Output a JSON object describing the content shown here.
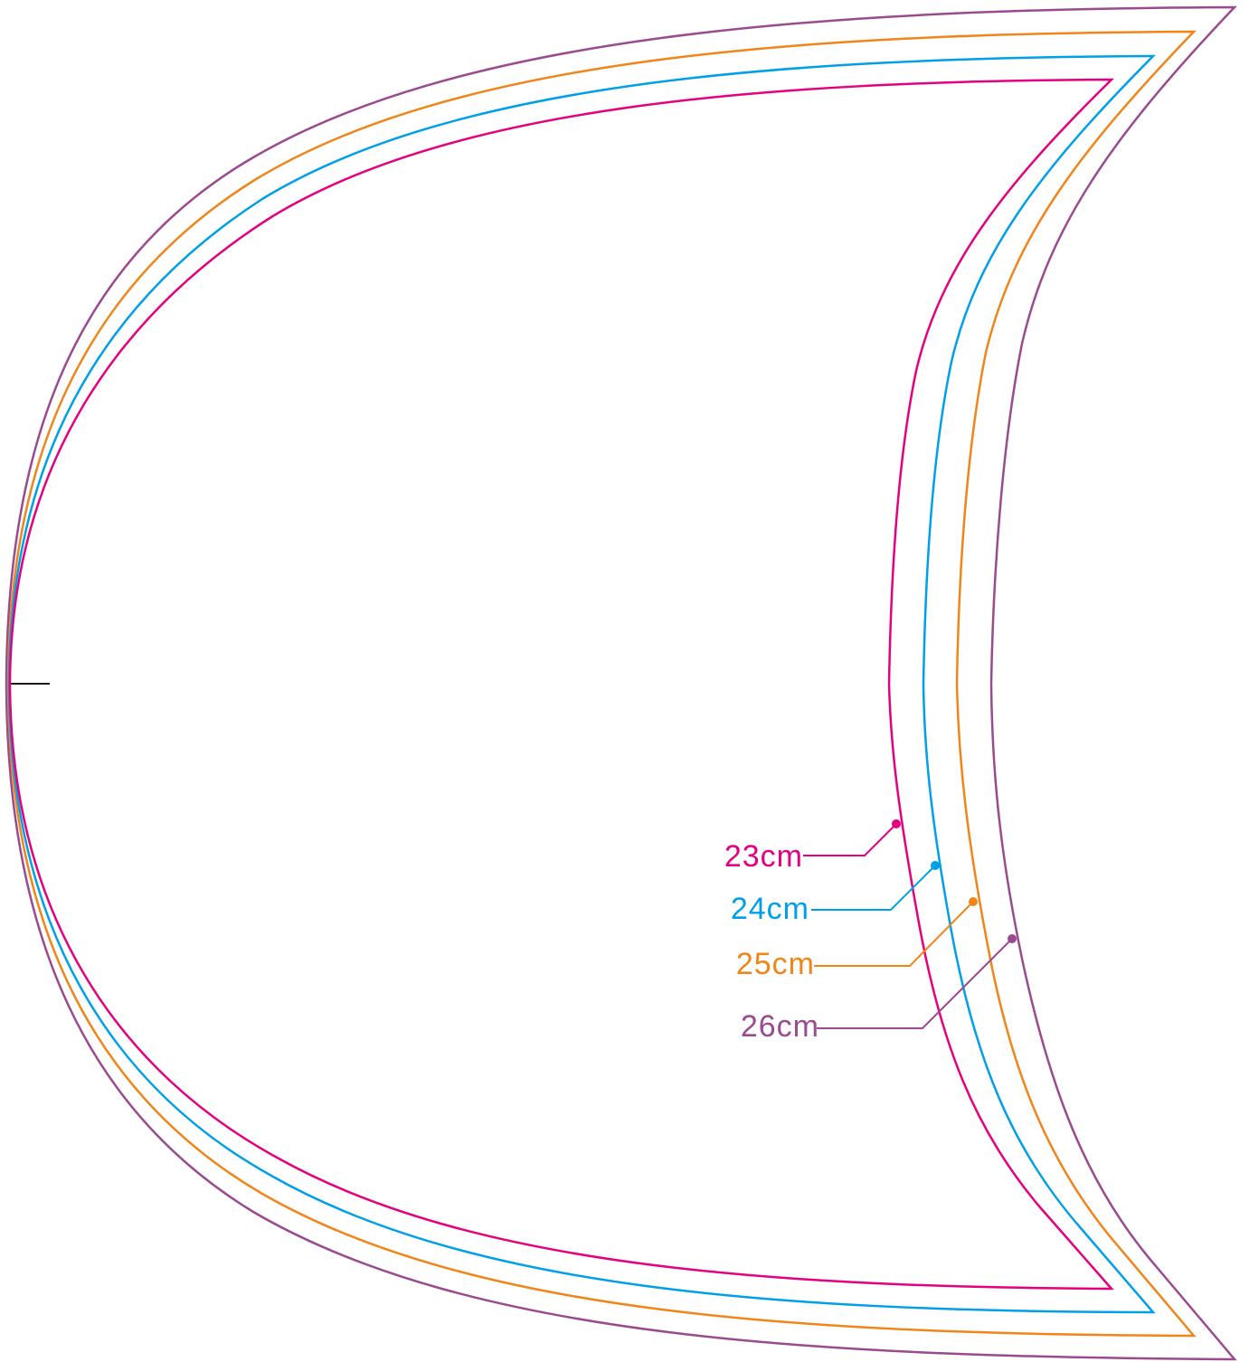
{
  "sizes": [
    {
      "label": "23cm",
      "color": "#e4007f"
    },
    {
      "label": "24cm",
      "color": "#00a0e9"
    },
    {
      "label": "25cm",
      "color": "#f08519"
    },
    {
      "label": "26cm",
      "color": "#9a4a8f"
    }
  ],
  "center_mark_color": "#231815"
}
